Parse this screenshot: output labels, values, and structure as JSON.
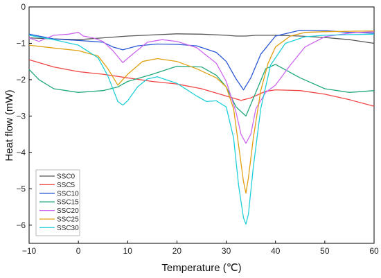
{
  "chart_data": {
    "type": "line",
    "xlabel": "Temperature (℃)",
    "ylabel": "Heat flow (mW)",
    "xlim": [
      -10,
      60
    ],
    "ylim": [
      -6.5,
      0
    ],
    "x_ticks": [
      -10,
      0,
      10,
      20,
      30,
      40,
      50,
      60
    ],
    "y_ticks": [
      0,
      -1,
      -2,
      -3,
      -4,
      -5,
      -6
    ],
    "grid": false,
    "legend_position": "bottom-left",
    "series": [
      {
        "name": "SSC0",
        "color": "#555555",
        "x": [
          -10,
          -5,
          0,
          5,
          10,
          15,
          20,
          25,
          30,
          32,
          34,
          36,
          40,
          45,
          50,
          55,
          60
        ],
        "y": [
          -0.85,
          -0.88,
          -0.9,
          -0.85,
          -0.8,
          -0.77,
          -0.74,
          -0.75,
          -0.78,
          -0.8,
          -0.8,
          -0.78,
          -0.78,
          -0.8,
          -0.84,
          -0.9,
          -1.0
        ]
      },
      {
        "name": "SSC5",
        "color": "#f04545",
        "x": [
          -10,
          -5,
          0,
          5,
          10,
          15,
          20,
          25,
          30,
          33,
          35,
          38,
          40,
          45,
          50,
          55,
          60
        ],
        "y": [
          -1.45,
          -1.65,
          -1.78,
          -1.85,
          -1.95,
          -2.05,
          -2.12,
          -2.25,
          -2.45,
          -2.57,
          -2.5,
          -2.32,
          -2.28,
          -2.3,
          -2.4,
          -2.55,
          -2.73
        ]
      },
      {
        "name": "SSC10",
        "color": "#2a58d4",
        "x": [
          -10,
          -5,
          0,
          5,
          7,
          9,
          12,
          16,
          20,
          24,
          28,
          30,
          32,
          33.5,
          35,
          37,
          40,
          45,
          50,
          55,
          60
        ],
        "y": [
          -0.75,
          -0.88,
          -0.92,
          -0.97,
          -1.1,
          -1.18,
          -1.07,
          -1.02,
          -1.03,
          -1.07,
          -1.25,
          -1.5,
          -1.98,
          -2.28,
          -1.95,
          -1.3,
          -0.8,
          -0.64,
          -0.65,
          -0.7,
          -0.72
        ]
      },
      {
        "name": "SSC15",
        "color": "#1fa87a",
        "x": [
          -10,
          -8,
          -5,
          0,
          5,
          8,
          10,
          15,
          20,
          25,
          28,
          30,
          32,
          34,
          36,
          38,
          40,
          45,
          50,
          55,
          60
        ],
        "y": [
          -1.72,
          -2.0,
          -2.25,
          -2.35,
          -2.3,
          -2.2,
          -2.05,
          -1.85,
          -1.63,
          -1.65,
          -1.88,
          -2.2,
          -2.75,
          -3.0,
          -2.35,
          -1.7,
          -1.58,
          -1.95,
          -2.25,
          -2.35,
          -2.3
        ]
      },
      {
        "name": "SSC20",
        "color": "#cc66ee",
        "x": [
          -10,
          -8,
          -5,
          -2,
          0,
          1,
          3,
          5,
          7,
          9,
          11,
          14,
          17,
          20,
          24,
          28,
          30,
          32,
          33,
          34,
          35,
          36,
          38,
          40,
          43,
          46,
          50,
          55,
          60
        ],
        "y": [
          -0.85,
          -0.95,
          -0.78,
          -0.75,
          -0.7,
          -0.8,
          -0.85,
          -0.95,
          -1.2,
          -1.53,
          -1.3,
          -0.97,
          -0.9,
          -0.95,
          -1.12,
          -1.55,
          -2.05,
          -2.9,
          -3.5,
          -3.75,
          -3.5,
          -2.8,
          -2.35,
          -2.15,
          -1.6,
          -1.1,
          -0.82,
          -0.72,
          -0.68
        ]
      },
      {
        "name": "SSC25",
        "color": "#e0a010",
        "x": [
          -10,
          -5,
          0,
          4,
          6,
          8,
          10,
          13,
          16,
          20,
          24,
          28,
          30,
          31.5,
          32.5,
          33.5,
          34,
          34.5,
          35.5,
          37,
          38.5,
          40,
          43,
          46,
          50,
          55,
          60
        ],
        "y": [
          -1.05,
          -1.13,
          -1.2,
          -1.35,
          -1.7,
          -2.15,
          -1.85,
          -1.5,
          -1.42,
          -1.5,
          -1.7,
          -1.95,
          -2.2,
          -2.8,
          -3.8,
          -4.8,
          -5.12,
          -4.7,
          -3.6,
          -2.3,
          -1.55,
          -1.1,
          -0.8,
          -0.7,
          -0.68,
          -0.67,
          -0.66
        ]
      },
      {
        "name": "SSC30",
        "color": "#1fd0d8",
        "x": [
          -10,
          -5,
          0,
          4,
          6,
          8,
          9,
          10,
          12,
          14,
          16,
          20,
          24,
          26,
          28,
          30,
          31.5,
          32.5,
          33.5,
          34,
          34.5,
          35.5,
          37,
          39,
          42,
          46,
          50,
          55,
          60
        ],
        "y": [
          -0.78,
          -0.9,
          -1.05,
          -1.4,
          -1.9,
          -2.6,
          -2.7,
          -2.58,
          -2.2,
          -1.98,
          -1.92,
          -2.1,
          -2.45,
          -2.6,
          -2.58,
          -2.75,
          -3.6,
          -4.9,
          -5.8,
          -5.97,
          -5.7,
          -4.4,
          -2.8,
          -1.6,
          -1.0,
          -0.82,
          -0.78,
          -0.76,
          -0.75
        ]
      }
    ]
  }
}
